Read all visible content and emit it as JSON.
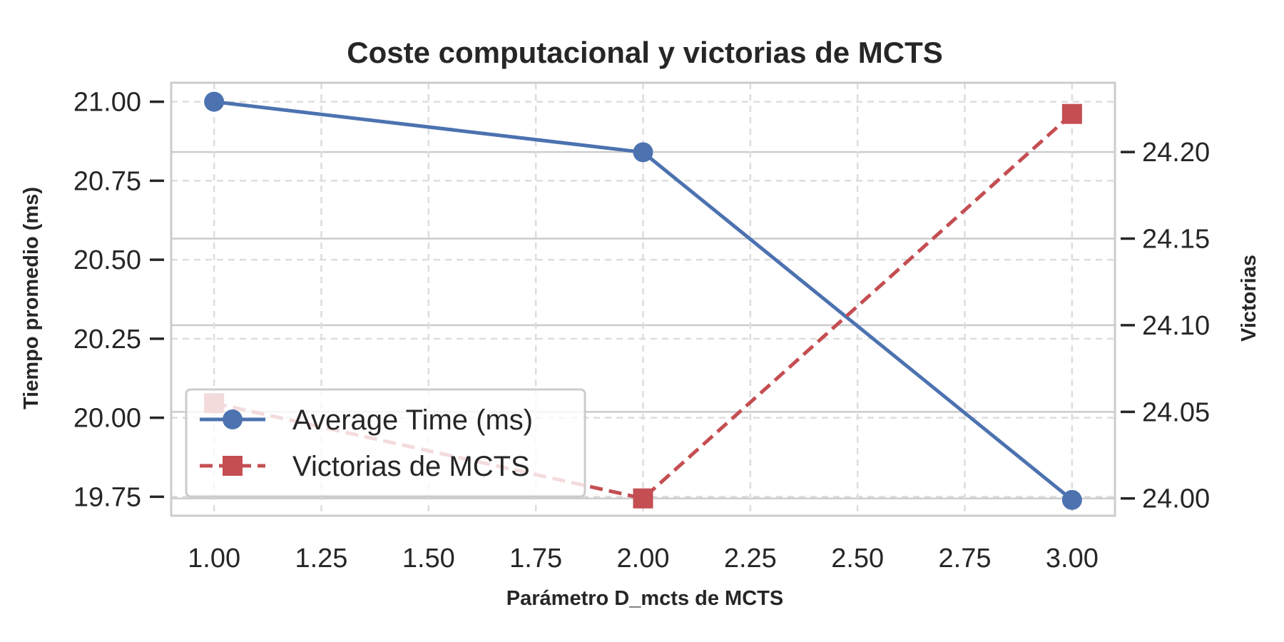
{
  "chart_data": {
    "type": "line",
    "title": "Coste computacional y victorias de MCTS",
    "xlabel": "Parámetro D_mcts de MCTS",
    "ylabel_left": "Tiempo promedio (ms)",
    "ylabel_right": "Victorias",
    "x": [
      1,
      2,
      3
    ],
    "xlim": [
      0.9,
      3.1
    ],
    "xticks": [
      "1.00",
      "1.25",
      "1.50",
      "1.75",
      "2.00",
      "2.25",
      "2.50",
      "2.75",
      "3.00"
    ],
    "ylim_left": [
      19.69,
      21.06
    ],
    "yticks_left": [
      "19.75",
      "20.00",
      "20.25",
      "20.50",
      "20.75",
      "21.00"
    ],
    "ylim_right": [
      23.99,
      24.24
    ],
    "yticks_right": [
      "24.00",
      "24.05",
      "24.10",
      "24.15",
      "24.20"
    ],
    "grid": true,
    "legend_position": "lower-left",
    "series": [
      {
        "name": "Average Time (ms)",
        "axis": "left",
        "values": [
          21.0,
          20.84,
          19.74
        ],
        "color": "#4C72B0",
        "style": "solid",
        "marker": "circle"
      },
      {
        "name": "Victorias de MCTS",
        "axis": "right",
        "values": [
          24.055,
          24.0,
          24.222
        ],
        "color": "#C44E52",
        "style": "dashed",
        "marker": "square"
      }
    ]
  }
}
